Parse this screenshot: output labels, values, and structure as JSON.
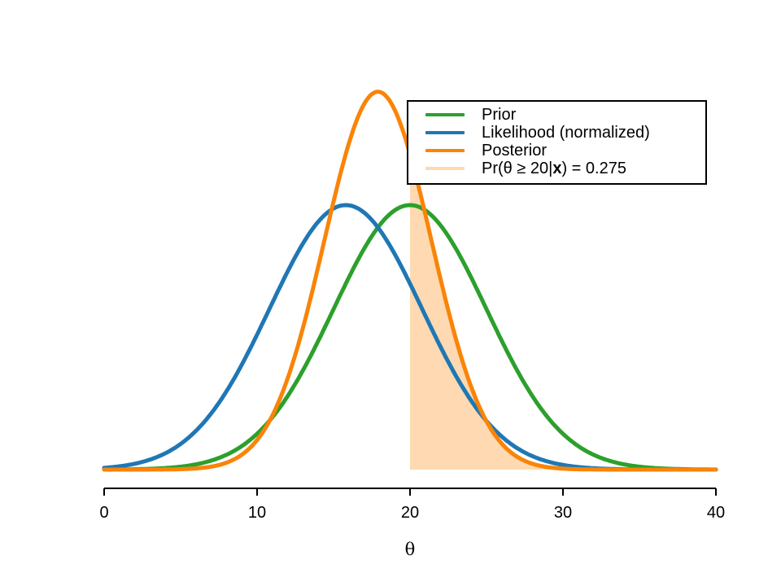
{
  "figure": {
    "background": "#ffffff",
    "legend": {
      "border_color": "#000000",
      "items": [
        {
          "label": "Prior"
        },
        {
          "label": "Likelihood (normalized)"
        },
        {
          "label": "Posterior"
        },
        {
          "label_prefix": "Pr(θ ≥ 20|",
          "label_bold": "x",
          "label_suffix": ") = 0.275"
        }
      ]
    }
  },
  "chart_data": {
    "type": "line",
    "title": "",
    "xlabel": "θ",
    "ylabel": "",
    "xlim": [
      0,
      40
    ],
    "grid": false,
    "legend_position": "top-right",
    "x_ticks": [
      0,
      10,
      20,
      30,
      40
    ],
    "x_tick_labels": [
      "0",
      "10",
      "20",
      "30",
      "40"
    ],
    "series": [
      {
        "name": "Prior",
        "distribution": "normal",
        "mean": 20.0,
        "sd": 5.0,
        "color": "#2ca02c"
      },
      {
        "name": "Likelihood (normalized)",
        "distribution": "normal",
        "mean": 15.8,
        "sd": 5.0,
        "color": "#1f77b4"
      },
      {
        "name": "Posterior",
        "distribution": "normal",
        "mean": 17.9,
        "sd": 3.5,
        "color": "#f98408"
      }
    ],
    "shaded_region": {
      "series": "Posterior",
      "from": 20,
      "to": 40,
      "color": "#fed9b1",
      "label": "Pr(θ ≥ 20|x) = 0.275",
      "probability": 0.275
    }
  }
}
